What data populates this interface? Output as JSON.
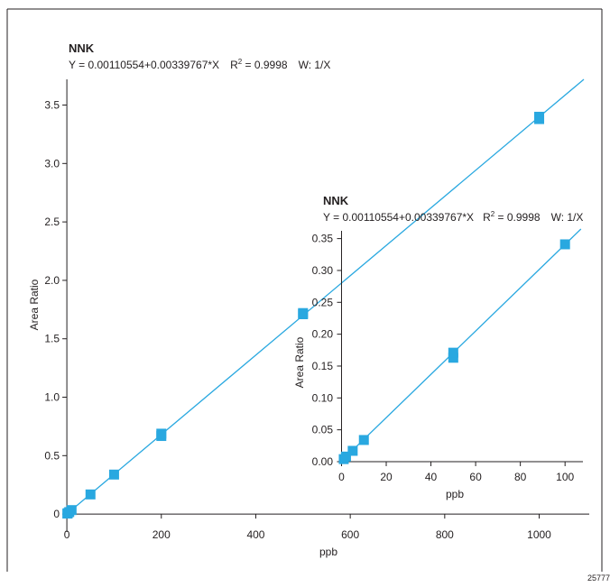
{
  "chart_data": [
    {
      "type": "scatter",
      "title": "NNK",
      "subtitle": {
        "equation": "Y = 0.00110554+0.00339767*X",
        "r2_prefix": "R",
        "r2_exp": "2",
        "r2_value": " = 0.9998",
        "weighting": "W: 1/X"
      },
      "xlabel": "ppb",
      "ylabel": "Area Ratio",
      "xlim": [
        -4,
        1106
      ],
      "ylim": [
        -0.03,
        3.72
      ],
      "xticks": [
        "0",
        "200",
        "400",
        "600",
        "800",
        "1000"
      ],
      "xtick_values": [
        0,
        200,
        400,
        600,
        800,
        1000
      ],
      "yticks": [
        "0",
        "0.5",
        "1.0",
        "1.5",
        "2.0",
        "2.5",
        "3.0",
        "3.5"
      ],
      "ytick_values": [
        0,
        0.5,
        1.0,
        1.5,
        2.0,
        2.5,
        3.0,
        3.5
      ],
      "series": [
        {
          "points": [
            [
              1,
              0.004
            ],
            [
              2,
              0.008
            ],
            [
              5,
              0.017
            ],
            [
              10,
              0.034
            ],
            [
              50,
              0.168
            ],
            [
              100,
              0.338
            ],
            [
              200,
              0.668
            ],
            [
              200,
              0.688
            ],
            [
              500,
              1.71
            ],
            [
              500,
              1.72
            ],
            [
              1000,
              3.38
            ],
            [
              1000,
              3.4
            ]
          ]
        }
      ],
      "fit": {
        "intercept": 0.00110554,
        "slope": 0.00339767
      },
      "grid": false,
      "marker_color": "#29a8e0",
      "line_color": "#29a8e0"
    },
    {
      "type": "scatter",
      "title": "NNK",
      "subtitle": {
        "equation": "Y = 0.00110554+0.00339767*X",
        "r2_prefix": "R",
        "r2_exp": "2",
        "r2_value": " = 0.9998",
        "weighting": "W: 1/X"
      },
      "xlabel": "ppb",
      "ylabel": "Area Ratio",
      "xlim": [
        -1,
        108
      ],
      "ylim": [
        0,
        0.365
      ],
      "xticks": [
        "0",
        "20",
        "40",
        "60",
        "80",
        "100"
      ],
      "xtick_values": [
        0,
        20,
        40,
        60,
        80,
        100
      ],
      "yticks": [
        "0.00",
        "0.05",
        "0.10",
        "0.15",
        "0.20",
        "0.25",
        "0.30",
        "0.35"
      ],
      "ytick_values": [
        0,
        0.05,
        0.1,
        0.15,
        0.2,
        0.25,
        0.3,
        0.35
      ],
      "series": [
        {
          "points": [
            [
              1,
              0.004
            ],
            [
              2,
              0.008
            ],
            [
              5,
              0.017
            ],
            [
              10,
              0.034
            ],
            [
              50,
              0.163
            ],
            [
              50,
              0.171
            ],
            [
              100,
              0.341
            ]
          ]
        }
      ],
      "fit": {
        "intercept": 0.00110554,
        "slope": 0.00339767
      },
      "grid": false,
      "marker_color": "#29a8e0",
      "line_color": "#29a8e0"
    }
  ],
  "figure_number": "25777"
}
